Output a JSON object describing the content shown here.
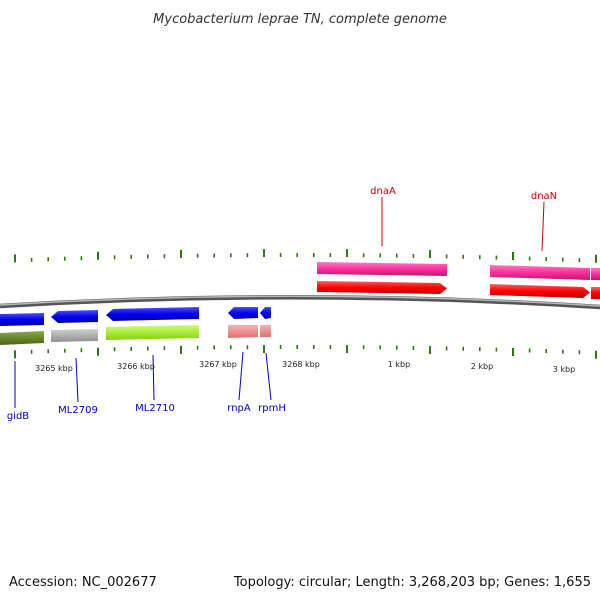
{
  "title": "Mycobacterium leprae TN, complete genome",
  "footer": {
    "accession": "Accession: NC_002677",
    "summary": "Topology: circular; Length: 3,268,203 bp; Genes: 1,655"
  },
  "ruler": {
    "labels": [
      "3265 kbp",
      "3266 kbp",
      "3267 kbp",
      "3268 kbp",
      "1 kbp",
      "2 kbp",
      "3 kbp"
    ]
  },
  "genes": [
    {
      "id": "gidb",
      "label": "gidB",
      "color": "#0000cc"
    },
    {
      "id": "ml2709",
      "label": "ML2709",
      "color": "#0000cc"
    },
    {
      "id": "ml2710",
      "label": "ML2710",
      "color": "#0000cc"
    },
    {
      "id": "rnpa",
      "label": "rnpA",
      "color": "#0000cc"
    },
    {
      "id": "rpmh",
      "label": "rpmH",
      "color": "#0000cc"
    },
    {
      "id": "dnaa",
      "label": "dnaA",
      "color": "#cc0000"
    },
    {
      "id": "dnan",
      "label": "dnaN",
      "color": "#cc0000"
    }
  ],
  "colors": {
    "forward_cds": "#ff0000",
    "forward_gene": "#ff2e9a",
    "reverse_cds": "#0000ee",
    "reverse_gene_gidb": "#5c7a1e",
    "reverse_gene_ml2709": "#b0b0b0",
    "reverse_gene_ml2710": "#a8f030",
    "reverse_gene_rnpa": "#f08c8c",
    "tick": "#2a7a10",
    "backbone": "#888888"
  }
}
